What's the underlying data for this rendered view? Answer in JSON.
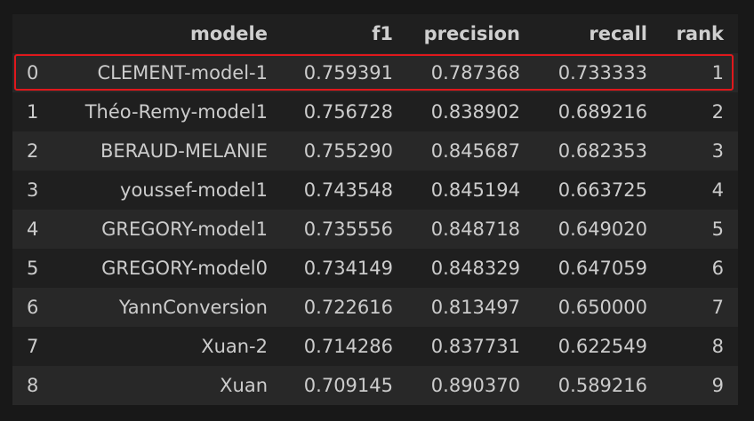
{
  "table": {
    "columns": [
      "",
      "modele",
      "f1",
      "precision",
      "recall",
      "rank"
    ],
    "rows": [
      {
        "index": "0",
        "modele": "CLEMENT-model-1",
        "f1": "0.759391",
        "precision": "0.787368",
        "recall": "0.733333",
        "rank": "1"
      },
      {
        "index": "1",
        "modele": "Théo-Remy-model1",
        "f1": "0.756728",
        "precision": "0.838902",
        "recall": "0.689216",
        "rank": "2"
      },
      {
        "index": "2",
        "modele": "BERAUD-MELANIE",
        "f1": "0.755290",
        "precision": "0.845687",
        "recall": "0.682353",
        "rank": "3"
      },
      {
        "index": "3",
        "modele": "youssef-model1",
        "f1": "0.743548",
        "precision": "0.845194",
        "recall": "0.663725",
        "rank": "4"
      },
      {
        "index": "4",
        "modele": "GREGORY-model1",
        "f1": "0.735556",
        "precision": "0.848718",
        "recall": "0.649020",
        "rank": "5"
      },
      {
        "index": "5",
        "modele": "GREGORY-model0",
        "f1": "0.734149",
        "precision": "0.848329",
        "recall": "0.647059",
        "rank": "6"
      },
      {
        "index": "6",
        "modele": "YannConversion",
        "f1": "0.722616",
        "precision": "0.813497",
        "recall": "0.650000",
        "rank": "7"
      },
      {
        "index": "7",
        "modele": "Xuan-2",
        "f1": "0.714286",
        "precision": "0.837731",
        "recall": "0.622549",
        "rank": "8"
      },
      {
        "index": "8",
        "modele": "Xuan",
        "f1": "0.709145",
        "precision": "0.890370",
        "recall": "0.589216",
        "rank": "9"
      }
    ],
    "highlighted_row_index": 0
  },
  "colors": {
    "background": "#181818",
    "row_odd": "#282828",
    "row_even": "#1f1f1f",
    "text": "#cccccc",
    "highlight_border": "#e0181c"
  }
}
